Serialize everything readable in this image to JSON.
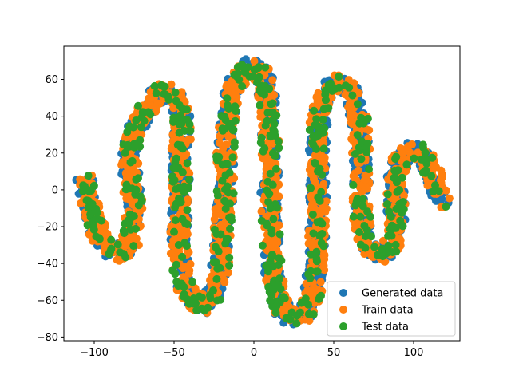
{
  "chart_data": {
    "type": "scatter",
    "title": "",
    "xlabel": "",
    "ylabel": "",
    "xlim": [
      -119,
      129
    ],
    "ylim": [
      -82,
      78
    ],
    "x_ticks": [
      -100,
      -50,
      0,
      50,
      100
    ],
    "y_ticks": [
      -80,
      -60,
      -40,
      -20,
      0,
      20,
      40,
      60
    ],
    "grid": false,
    "legend_position": "lower-right",
    "shape_description": "Serpentine band starting near (-105, 5), curving down to (-85, -35), up through (-70, 45) and (-55, 57), down to (-45, -60) and (-30, -65), up to (-15, 62) and (-3, 70), down to (12, -70) and (30, -72), up to (45, 55) and (55, 62), down to (70, -35) and (85, -35), up to (100, 22), ending near (117, -7)",
    "centerline": [
      [
        -106,
        6
      ],
      [
        -104,
        -3
      ],
      [
        -101,
        -13
      ],
      [
        -98,
        -22
      ],
      [
        -94,
        -29
      ],
      [
        -89,
        -33
      ],
      [
        -84,
        -34
      ],
      [
        -79,
        -32
      ],
      [
        -76,
        -24
      ],
      [
        -75,
        -12
      ],
      [
        -76,
        0
      ],
      [
        -78,
        12
      ],
      [
        -77,
        24
      ],
      [
        -74,
        34
      ],
      [
        -69,
        42
      ],
      [
        -63,
        49
      ],
      [
        -57,
        54
      ],
      [
        -51,
        53
      ],
      [
        -46,
        45
      ],
      [
        -45,
        32
      ],
      [
        -46,
        18
      ],
      [
        -46,
        4
      ],
      [
        -46,
        -10
      ],
      [
        -47,
        -24
      ],
      [
        -46,
        -38
      ],
      [
        -44,
        -50
      ],
      [
        -40,
        -58
      ],
      [
        -34,
        -63
      ],
      [
        -29,
        -62
      ],
      [
        -24,
        -54
      ],
      [
        -21,
        -42
      ],
      [
        -20,
        -28
      ],
      [
        -19,
        -13
      ],
      [
        -18,
        2
      ],
      [
        -18,
        18
      ],
      [
        -17,
        33
      ],
      [
        -15,
        46
      ],
      [
        -12,
        57
      ],
      [
        -7,
        64
      ],
      [
        -2,
        67
      ],
      [
        3,
        66
      ],
      [
        7,
        58
      ],
      [
        9,
        45
      ],
      [
        10,
        30
      ],
      [
        10,
        15
      ],
      [
        10,
        0
      ],
      [
        10,
        -15
      ],
      [
        11,
        -30
      ],
      [
        12,
        -45
      ],
      [
        14,
        -57
      ],
      [
        18,
        -66
      ],
      [
        24,
        -70
      ],
      [
        30,
        -69
      ],
      [
        35,
        -62
      ],
      [
        38,
        -49
      ],
      [
        40,
        -34
      ],
      [
        40,
        -18
      ],
      [
        40,
        -3
      ],
      [
        40,
        12
      ],
      [
        40,
        27
      ],
      [
        41,
        40
      ],
      [
        44,
        51
      ],
      [
        50,
        58
      ],
      [
        57,
        58
      ],
      [
        63,
        50
      ],
      [
        66,
        37
      ],
      [
        67,
        23
      ],
      [
        67,
        8
      ],
      [
        67,
        -6
      ],
      [
        68,
        -19
      ],
      [
        70,
        -29
      ],
      [
        75,
        -34
      ],
      [
        81,
        -35
      ],
      [
        86,
        -31
      ],
      [
        89,
        -20
      ],
      [
        89,
        -6
      ],
      [
        89,
        8
      ],
      [
        92,
        17
      ],
      [
        98,
        21
      ],
      [
        104,
        20
      ],
      [
        109,
        15
      ],
      [
        113,
        7
      ],
      [
        116,
        -2
      ],
      [
        117,
        -6
      ]
    ],
    "band_half_width": 5,
    "series": [
      {
        "name": "Generated data",
        "color": "#1f77b4",
        "count": 1500
      },
      {
        "name": "Train data",
        "color": "#ff7f0e",
        "count": 1500
      },
      {
        "name": "Test data",
        "color": "#2ca02c",
        "count": 500
      }
    ]
  }
}
